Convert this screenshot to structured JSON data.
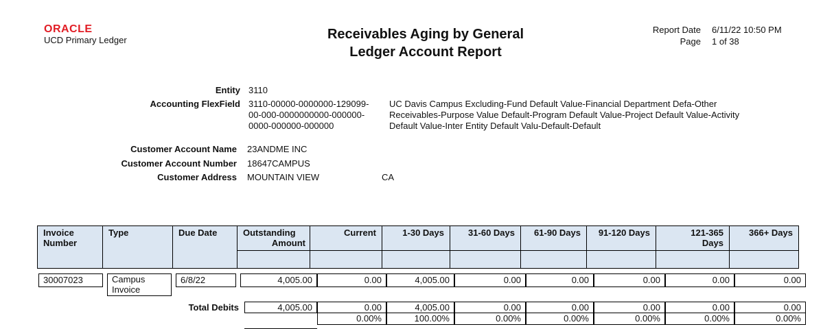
{
  "header": {
    "logo": "ORACLE",
    "ledger": "UCD Primary Ledger",
    "title_line1": "Receivables Aging by General",
    "title_line2": "Ledger Account Report",
    "report_date_label": "Report Date",
    "report_date_value": "6/11/22 10:50 PM",
    "page_label": "Page",
    "page_value": "1 of 38"
  },
  "entity": {
    "entity_label": "Entity",
    "entity_value": "3110",
    "flexfield_label": "Accounting FlexField",
    "flexfield_line1": "3110-00000-0000000-129099-",
    "flexfield_line2": "00-000-0000000000-000000-",
    "flexfield_line3": "0000-000000-000000",
    "flexfield_desc1": "UC Davis Campus Excluding-Fund Default Value-Financial Department Defa-Other",
    "flexfield_desc2": "Receivables-Purpose Value Default-Program Default Value-Project Default Value-Activity",
    "flexfield_desc3": "Default Value-Inter Entity Default Valu-Default-Default"
  },
  "customer": {
    "name_label": "Customer Account Name",
    "name_value": "23ANDME INC",
    "number_label": "Customer Account Number",
    "number_value": "18647CAMPUS",
    "address_label": "Customer Address",
    "address_city": "MOUNTAIN VIEW",
    "address_state": "CA"
  },
  "table": {
    "headers": {
      "invoice_number_1": "Invoice",
      "invoice_number_2": "Number",
      "type": "Type",
      "due_date": "Due Date",
      "outstanding_1": "Outstanding",
      "outstanding_2": "Amount",
      "current": "Current",
      "d1_30": "1-30 Days",
      "d31_60": "31-60 Days",
      "d61_90": "61-90 Days",
      "d91_120": "91-120 Days",
      "d121_365_1": "121-365",
      "d121_365_2": "Days",
      "d366": "366+ Days"
    },
    "row": {
      "invoice_number": "30007023",
      "type_1": "Campus",
      "type_2": "Invoice",
      "due_date": "6/8/22",
      "outstanding": "4,005.00",
      "current": "0.00",
      "d1_30": "4,005.00",
      "d31_60": "0.00",
      "d61_90": "0.00",
      "d91_120": "0.00",
      "d121_365": "0.00",
      "d366": "0.00"
    },
    "totals": {
      "label": "Total Debits",
      "outstanding": "4,005.00",
      "current": "0.00",
      "d1_30": "4,005.00",
      "d31_60": "0.00",
      "d61_90": "0.00",
      "d91_120": "0.00",
      "d121_365": "0.00",
      "d366": "0.00"
    },
    "percents": {
      "current": "0.00%",
      "d1_30": "100.00%",
      "d31_60": "0.00%",
      "d61_90": "0.00%",
      "d91_120": "0.00%",
      "d121_365": "0.00%",
      "d366": "0.00%"
    }
  }
}
